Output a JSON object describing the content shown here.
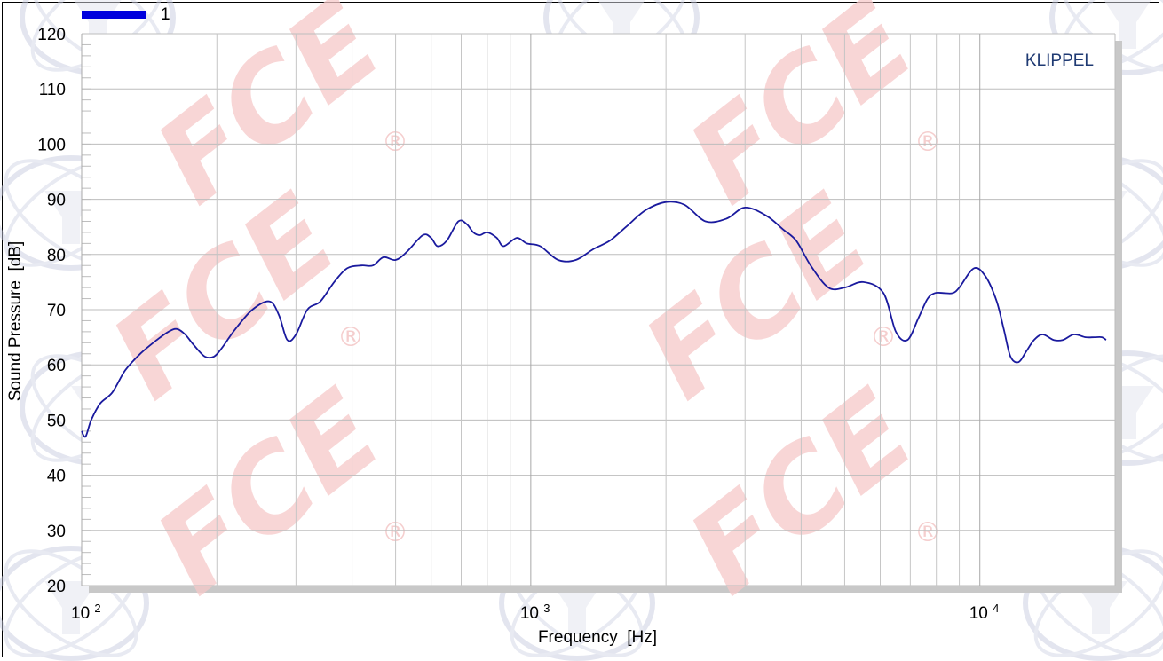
{
  "chart_data": {
    "type": "line",
    "x_scale": "log",
    "xlim": [
      100,
      20000
    ],
    "ylim": [
      20,
      120
    ],
    "xlabel": "Frequency  [Hz]",
    "ylabel": "Sound Pressure  [dB]",
    "brand": "KLIPPEL",
    "watermark": "FCE",
    "grid": true,
    "legend_position": "top-left",
    "y_ticks": [
      "20",
      "30",
      "40",
      "50",
      "60",
      "70",
      "80",
      "90",
      "100",
      "110",
      "120"
    ],
    "y_tick_values": [
      20,
      30,
      40,
      50,
      60,
      70,
      80,
      90,
      100,
      110,
      120
    ],
    "x_ticks": [
      {
        "value": 100,
        "base": "10",
        "exp": "2"
      },
      {
        "value": 1000,
        "base": "10",
        "exp": "3"
      },
      {
        "value": 10000,
        "base": "10",
        "exp": "4"
      }
    ],
    "series": [
      {
        "name": "1",
        "color": "#1a1a9e",
        "legend_color": "#0000dd",
        "x": [
          100,
          102,
          105,
          110,
          117,
          125,
          135,
          147,
          156,
          163,
          170,
          178,
          188,
          197,
          205,
          220,
          240,
          262,
          275,
          287,
          300,
          318,
          340,
          365,
          390,
          420,
          445,
          470,
          500,
          530,
          575,
          600,
          620,
          650,
          690,
          720,
          745,
          770,
          800,
          840,
          870,
          930,
          980,
          1050,
          1150,
          1260,
          1380,
          1500,
          1630,
          1800,
          2000,
          2200,
          2450,
          2730,
          3000,
          3350,
          3650,
          3900,
          4200,
          4600,
          5000,
          5500,
          6100,
          6500,
          6900,
          7300,
          7650,
          7950,
          8300,
          8700,
          9000,
          9700,
          10300,
          10900,
          11300,
          11700,
          12200,
          12700,
          13200,
          13800,
          14600,
          15300,
          16200,
          17200,
          18000,
          18700,
          19100
        ],
        "y": [
          48,
          47,
          50,
          53,
          55,
          59,
          62,
          64.5,
          66,
          66.5,
          65.5,
          63.5,
          61.5,
          61.5,
          63,
          66.5,
          70,
          71.5,
          69,
          64.5,
          65.5,
          70,
          71.5,
          75,
          77.5,
          78,
          78,
          79.5,
          79,
          80.5,
          83.5,
          83,
          81.5,
          82.5,
          86,
          85.5,
          84,
          83.5,
          84,
          83,
          81.5,
          83,
          82,
          81.5,
          79,
          79,
          81,
          82.5,
          85,
          88,
          89.5,
          89,
          86,
          86.5,
          88.5,
          87,
          84.5,
          82.5,
          78,
          74,
          74,
          75,
          73,
          66,
          64.5,
          68.5,
          72,
          73,
          73,
          73,
          74,
          77.5,
          76,
          71.5,
          66.5,
          61.5,
          60.5,
          62.5,
          64.5,
          65.5,
          64.5,
          64.5,
          65.5,
          65,
          65,
          65,
          64.5
        ]
      }
    ]
  }
}
